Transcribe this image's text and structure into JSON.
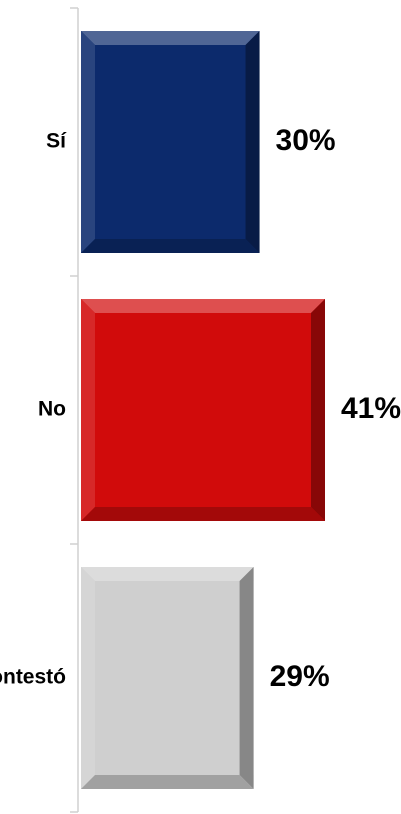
{
  "chart_data": {
    "type": "bar",
    "orientation": "horizontal",
    "categories": [
      "Sí",
      "No",
      "No contestó"
    ],
    "values": [
      30,
      41,
      29
    ],
    "value_labels": [
      "30%",
      "41%",
      "29%"
    ],
    "colors": [
      "#0c2a6c",
      "#d10b0b",
      "#cfcfcf"
    ],
    "xlim": [
      0,
      41
    ],
    "title": "",
    "xlabel": "",
    "ylabel": "",
    "grid": false,
    "legend": "none"
  }
}
